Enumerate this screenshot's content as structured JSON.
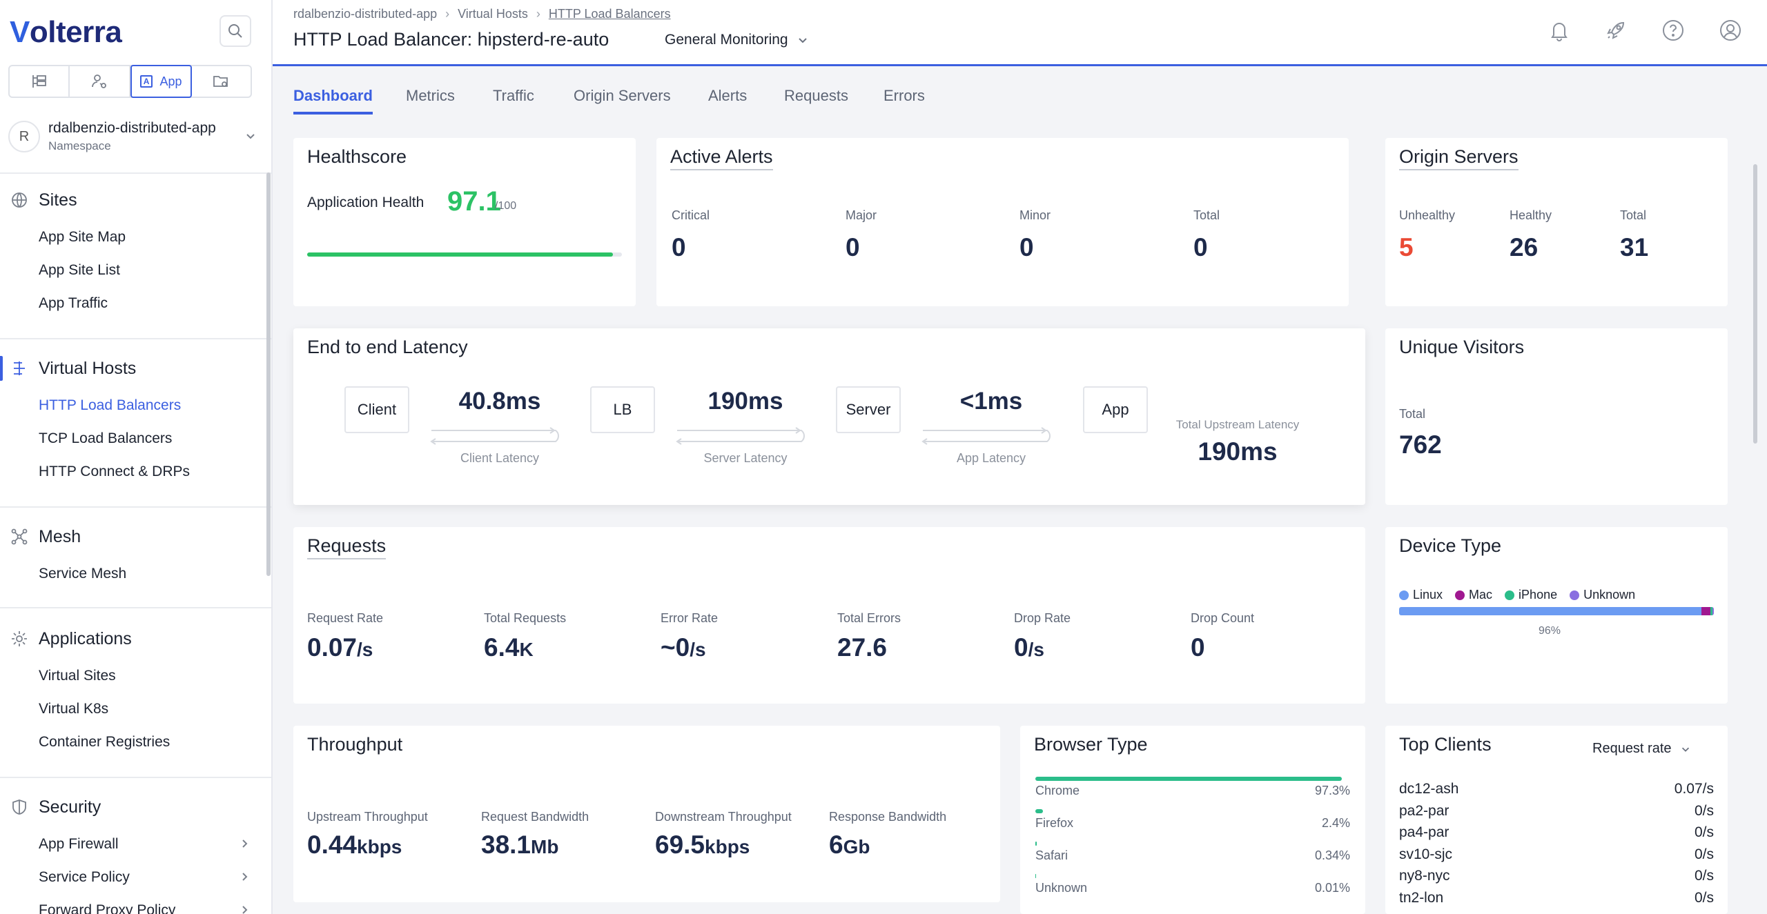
{
  "app": {
    "brand": "Volterra"
  },
  "sidebar": {
    "modes": [
      {
        "icon": "tree-icon"
      },
      {
        "icon": "user-network-icon"
      },
      {
        "icon": "app-icon",
        "label": "App",
        "badge": "A"
      },
      {
        "icon": "folder-settings-icon"
      }
    ],
    "namespace": {
      "initial": "R",
      "name": "rdalbenzio-distributed-app",
      "sub": "Namespace"
    },
    "sections": [
      {
        "title": "Sites",
        "items": [
          "App Site Map",
          "App Site List",
          "App Traffic"
        ]
      },
      {
        "title": "Virtual Hosts",
        "items": [
          "HTTP Load Balancers",
          "TCP Load Balancers",
          "HTTP Connect & DRPs"
        ]
      },
      {
        "title": "Mesh",
        "items": [
          "Service Mesh"
        ]
      },
      {
        "title": "Applications",
        "items": [
          "Virtual Sites",
          "Virtual K8s",
          "Container Registries"
        ]
      },
      {
        "title": "Security",
        "items": [
          "App Firewall",
          "Service Policy",
          "Forward Proxy Policy"
        ]
      }
    ]
  },
  "header": {
    "breadcrumbs": [
      "rdalbenzio-distributed-app",
      "Virtual Hosts",
      "HTTP Load Balancers"
    ],
    "title": "HTTP Load Balancer: hipsterd-re-auto",
    "monitoring": "General Monitoring"
  },
  "tabs": [
    "Dashboard",
    "Metrics",
    "Traffic",
    "Origin Servers",
    "Alerts",
    "Requests",
    "Errors"
  ],
  "healthscore": {
    "title": "Healthscore",
    "label": "Application Health",
    "score": "97.1",
    "max": "/100",
    "fraction": 0.971
  },
  "active_alerts": {
    "title": "Active Alerts",
    "stats": [
      {
        "label": "Critical",
        "value": "0"
      },
      {
        "label": "Major",
        "value": "0"
      },
      {
        "label": "Minor",
        "value": "0"
      },
      {
        "label": "Total",
        "value": "0"
      }
    ]
  },
  "origin_servers": {
    "title": "Origin Servers",
    "stats": [
      {
        "label": "Unhealthy",
        "value": "5"
      },
      {
        "label": "Healthy",
        "value": "26"
      },
      {
        "label": "Total",
        "value": "31"
      }
    ]
  },
  "latency": {
    "title": "End to end Latency",
    "nodes": [
      "Client",
      "LB",
      "Server",
      "App"
    ],
    "segments": [
      {
        "value": "40.8ms",
        "label": "Client Latency"
      },
      {
        "value": "190ms",
        "label": "Server Latency"
      },
      {
        "value": "<1ms",
        "label": "App Latency"
      }
    ],
    "total_label": "Total Upstream Latency",
    "total_value": "190ms"
  },
  "unique_visitors": {
    "title": "Unique Visitors",
    "label": "Total",
    "value": "762"
  },
  "requests": {
    "title": "Requests",
    "stats": [
      {
        "label": "Request Rate",
        "value": "0.07",
        "unit": "/s"
      },
      {
        "label": "Total Requests",
        "value": "6.4",
        "unit": "K"
      },
      {
        "label": "Error Rate",
        "value": "~0",
        "unit": "/s"
      },
      {
        "label": "Total Errors",
        "value": "27.6",
        "unit": ""
      },
      {
        "label": "Drop Rate",
        "value": "0",
        "unit": "/s"
      },
      {
        "label": "Drop Count",
        "value": "0",
        "unit": ""
      }
    ]
  },
  "device_type": {
    "title": "Device Type",
    "legend": [
      {
        "name": "Linux",
        "color": "#6b9bf2"
      },
      {
        "name": "Mac",
        "color": "#a01890"
      },
      {
        "name": "iPhone",
        "color": "#2bbd8a"
      },
      {
        "name": "Unknown",
        "color": "#8a6fe0"
      }
    ],
    "shares": [
      0.96,
      0.03,
      0.005,
      0.005
    ],
    "bar_label": "96%"
  },
  "throughput": {
    "title": "Throughput",
    "stats": [
      {
        "label": "Upstream Throughput",
        "value": "0.44",
        "unit": "kbps"
      },
      {
        "label": "Request Bandwidth",
        "value": "38.1",
        "unit": "Mb"
      },
      {
        "label": "Downstream Throughput",
        "value": "69.5",
        "unit": "kbps"
      },
      {
        "label": "Response Bandwidth",
        "value": "6",
        "unit": "Gb"
      }
    ]
  },
  "browser_type": {
    "title": "Browser Type",
    "rows": [
      {
        "name": "Chrome",
        "pct": "97.3%",
        "fraction": 0.973
      },
      {
        "name": "Firefox",
        "pct": "2.4%",
        "fraction": 0.024
      },
      {
        "name": "Safari",
        "pct": "0.34%",
        "fraction": 0.0034
      },
      {
        "name": "Unknown",
        "pct": "0.01%",
        "fraction": 0.0001
      }
    ]
  },
  "top_clients": {
    "title": "Top Clients",
    "metric": "Request rate",
    "rows": [
      {
        "name": "dc12-ash",
        "value": "0.07/s"
      },
      {
        "name": "pa2-par",
        "value": "0/s"
      },
      {
        "name": "pa4-par",
        "value": "0/s"
      },
      {
        "name": "sv10-sjc",
        "value": "0/s"
      },
      {
        "name": "ny8-nyc",
        "value": "0/s"
      },
      {
        "name": "tn2-lon",
        "value": "0/s"
      }
    ]
  }
}
